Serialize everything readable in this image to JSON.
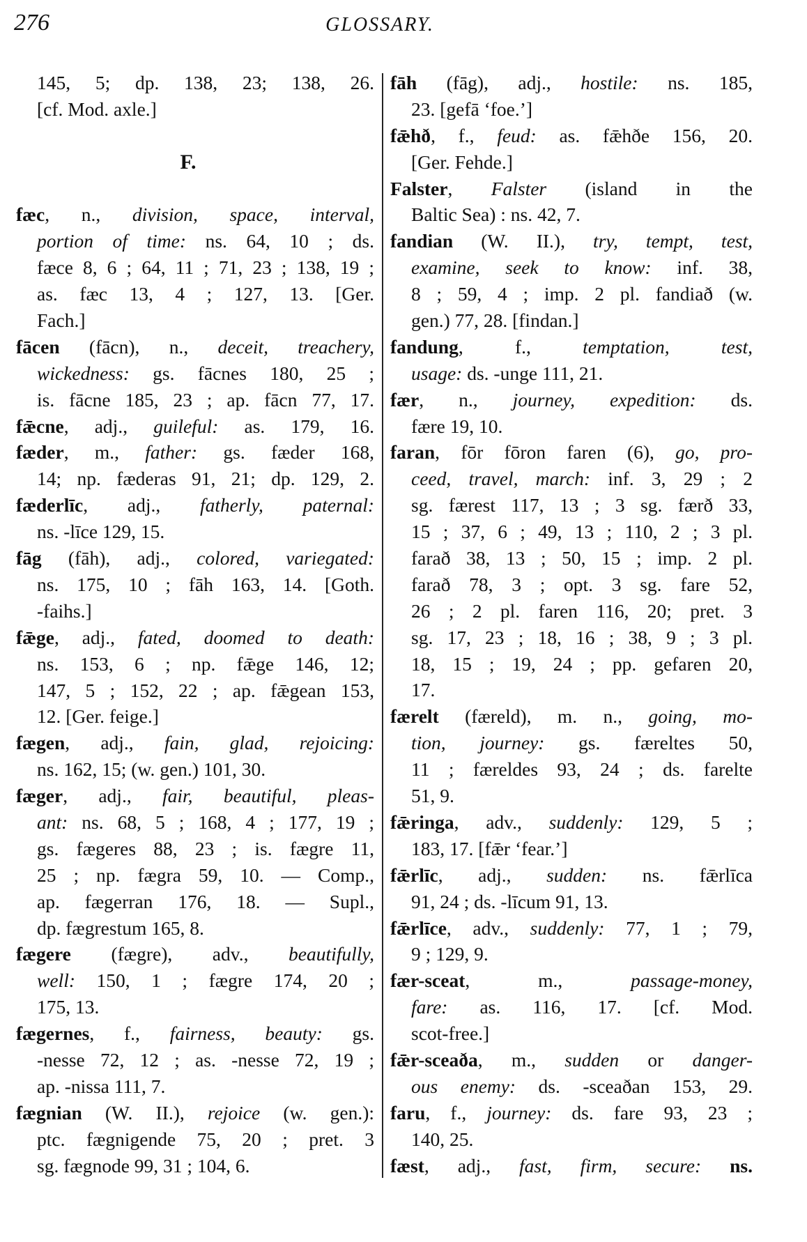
{
  "header": {
    "page_number": "276",
    "running_title": "GLOSSARY."
  },
  "left": {
    "before": [
      {
        "ind": true,
        "segs": [
          [
            "r",
            "145, 5; dp. 138, 23; 138, 26."
          ]
        ]
      },
      {
        "ind": true,
        "last": true,
        "segs": [
          [
            "r",
            "[cf. Mod. axle.]"
          ]
        ]
      }
    ],
    "section_heading": "F.",
    "lines": [
      {
        "segs": [
          [
            "b",
            "fæc"
          ],
          [
            "r",
            ", n., "
          ],
          [
            "i",
            "division, space, interval,"
          ]
        ]
      },
      {
        "ind": true,
        "segs": [
          [
            "i",
            "portion of time:"
          ],
          [
            "r",
            " ns. 64, 10 ; ds."
          ]
        ]
      },
      {
        "ind": true,
        "segs": [
          [
            "r",
            "fæce 8, 6 ; 64, 11 ; 71, 23 ; 138, 19 ;"
          ]
        ]
      },
      {
        "ind": true,
        "segs": [
          [
            "r",
            "as. fæc 13, 4 ; 127, 13. [Ger."
          ]
        ]
      },
      {
        "ind": true,
        "last": true,
        "segs": [
          [
            "r",
            "Fach.]"
          ]
        ]
      },
      {
        "segs": [
          [
            "b",
            "fācen"
          ],
          [
            "r",
            " (fācn), n., "
          ],
          [
            "i",
            "deceit, treachery,"
          ]
        ]
      },
      {
        "ind": true,
        "segs": [
          [
            "i",
            "wickedness:"
          ],
          [
            "r",
            " gs. fācnes 180, 25 ;"
          ]
        ]
      },
      {
        "ind": true,
        "segs": [
          [
            "r",
            "is. fācne 185, 23 ; ap. fācn 77, 17."
          ]
        ]
      },
      {
        "segs": [
          [
            "b",
            "fǣcne"
          ],
          [
            "r",
            ", adj., "
          ],
          [
            "i",
            "guileful:"
          ],
          [
            "r",
            " as. 179, 16."
          ]
        ]
      },
      {
        "segs": [
          [
            "b",
            "fæder"
          ],
          [
            "r",
            ", m., "
          ],
          [
            "i",
            "father:"
          ],
          [
            "r",
            " gs. fæder 168,"
          ]
        ]
      },
      {
        "ind": true,
        "segs": [
          [
            "r",
            "14; np. fæderas 91, 21; dp. 129, 2."
          ]
        ]
      },
      {
        "segs": [
          [
            "b",
            "fæderlīc"
          ],
          [
            "r",
            ", adj., "
          ],
          [
            "i",
            "fatherly, paternal:"
          ]
        ]
      },
      {
        "ind": true,
        "last": true,
        "segs": [
          [
            "r",
            "ns. -līce 129, 15."
          ]
        ]
      },
      {
        "segs": [
          [
            "b",
            "fāg"
          ],
          [
            "r",
            " (fāh), adj., "
          ],
          [
            "i",
            "colored, variegated:"
          ]
        ]
      },
      {
        "ind": true,
        "segs": [
          [
            "r",
            "ns. 175, 10 ; fāh 163, 14. [Goth."
          ]
        ]
      },
      {
        "ind": true,
        "last": true,
        "segs": [
          [
            "r",
            "-faihs.]"
          ]
        ]
      },
      {
        "segs": [
          [
            "b",
            "fǣge"
          ],
          [
            "r",
            ", adj., "
          ],
          [
            "i",
            "fated, doomed to death:"
          ]
        ]
      },
      {
        "ind": true,
        "segs": [
          [
            "r",
            "ns. 153, 6 ; np. fǣge 146, 12;"
          ]
        ]
      },
      {
        "ind": true,
        "segs": [
          [
            "r",
            "147, 5 ; 152, 22 ; ap. fǣgean 153,"
          ]
        ]
      },
      {
        "ind": true,
        "last": true,
        "segs": [
          [
            "r",
            "12. [Ger. feige.]"
          ]
        ]
      },
      {
        "segs": [
          [
            "b",
            "fægen"
          ],
          [
            "r",
            ", adj., "
          ],
          [
            "i",
            "fain, glad, rejoicing:"
          ]
        ]
      },
      {
        "ind": true,
        "last": true,
        "segs": [
          [
            "r",
            "ns. 162, 15; (w. gen.) 101, 30."
          ]
        ]
      },
      {
        "segs": [
          [
            "b",
            "fæger"
          ],
          [
            "r",
            ", adj., "
          ],
          [
            "i",
            "fair, beautiful, pleas-"
          ]
        ]
      },
      {
        "ind": true,
        "segs": [
          [
            "i",
            "ant:"
          ],
          [
            "r",
            " ns. 68, 5 ; 168, 4 ; 177, 19 ;"
          ]
        ]
      },
      {
        "ind": true,
        "segs": [
          [
            "r",
            "gs. fægeres 88, 23 ; is. fægre 11,"
          ]
        ]
      },
      {
        "ind": true,
        "segs": [
          [
            "r",
            "25 ; np. fægra 59, 10. — Comp.,"
          ]
        ]
      },
      {
        "ind": true,
        "segs": [
          [
            "r",
            "ap. fægerran 176, 18. — Supl.,"
          ]
        ]
      },
      {
        "ind": true,
        "last": true,
        "segs": [
          [
            "r",
            "dp. fægrestum 165, 8."
          ]
        ]
      },
      {
        "segs": [
          [
            "b",
            "fægere"
          ],
          [
            "r",
            " (fægre), adv., "
          ],
          [
            "i",
            "beautifully,"
          ]
        ]
      },
      {
        "ind": true,
        "segs": [
          [
            "i",
            "well:"
          ],
          [
            "r",
            " 150, 1 ; fægre 174, 20 ;"
          ]
        ]
      },
      {
        "ind": true,
        "last": true,
        "segs": [
          [
            "r",
            "175, 13."
          ]
        ]
      },
      {
        "segs": [
          [
            "b",
            "fægernes"
          ],
          [
            "r",
            ", f., "
          ],
          [
            "i",
            "fairness, beauty:"
          ],
          [
            "r",
            " gs."
          ]
        ]
      },
      {
        "ind": true,
        "segs": [
          [
            "r",
            "-nesse 72, 12 ; as. -nesse 72, 19 ;"
          ]
        ]
      },
      {
        "ind": true,
        "last": true,
        "segs": [
          [
            "r",
            "ap. -nissa 111, 7."
          ]
        ]
      },
      {
        "segs": [
          [
            "b",
            "fægnian"
          ],
          [
            "r",
            " (W. II.), "
          ],
          [
            "i",
            "rejoice"
          ],
          [
            "r",
            " (w. gen.):"
          ]
        ]
      },
      {
        "ind": true,
        "segs": [
          [
            "r",
            "ptc. fægnigende 75, 20 ; pret. 3"
          ]
        ]
      },
      {
        "ind": true,
        "last": true,
        "segs": [
          [
            "r",
            "sg. fægnode 99, 31 ; 104, 6."
          ]
        ]
      }
    ]
  },
  "right": {
    "lines": [
      {
        "segs": [
          [
            "b",
            "fāh"
          ],
          [
            "r",
            " (fāg), adj., "
          ],
          [
            "i",
            "hostile:"
          ],
          [
            "r",
            " ns. 185,"
          ]
        ]
      },
      {
        "ind": true,
        "last": true,
        "segs": [
          [
            "r",
            "23. [gefā ‘foe.’]"
          ]
        ]
      },
      {
        "segs": [
          [
            "b",
            "fǣhð"
          ],
          [
            "r",
            ", f., "
          ],
          [
            "i",
            "feud:"
          ],
          [
            "r",
            " as. fǣhðe 156, 20."
          ]
        ]
      },
      {
        "ind": true,
        "last": true,
        "segs": [
          [
            "r",
            "[Ger. Fehde.]"
          ]
        ]
      },
      {
        "segs": [
          [
            "b",
            "Falster"
          ],
          [
            "r",
            ", "
          ],
          [
            "i",
            "Falster"
          ],
          [
            "r",
            " (island in the"
          ]
        ]
      },
      {
        "ind": true,
        "last": true,
        "segs": [
          [
            "r",
            "Baltic Sea) : ns. 42, 7."
          ]
        ]
      },
      {
        "segs": [
          [
            "b",
            "fandian"
          ],
          [
            "r",
            " (W. II.), "
          ],
          [
            "i",
            "try, tempt, test,"
          ]
        ]
      },
      {
        "ind": true,
        "segs": [
          [
            "i",
            "examine, seek to know:"
          ],
          [
            "r",
            " inf. 38,"
          ]
        ]
      },
      {
        "ind": true,
        "segs": [
          [
            "r",
            "8 ; 59, 4 ; imp. 2 pl. fandiað (w."
          ]
        ]
      },
      {
        "ind": true,
        "last": true,
        "segs": [
          [
            "r",
            "gen.) 77, 28. [findan.]"
          ]
        ]
      },
      {
        "segs": [
          [
            "b",
            "fandung"
          ],
          [
            "r",
            ", f., "
          ],
          [
            "i",
            "temptation, test,"
          ]
        ]
      },
      {
        "ind": true,
        "last": true,
        "segs": [
          [
            "i",
            "usage:"
          ],
          [
            "r",
            " ds. -unge 111, 21."
          ]
        ]
      },
      {
        "segs": [
          [
            "b",
            "fær"
          ],
          [
            "r",
            ", n., "
          ],
          [
            "i",
            "journey, expedition:"
          ],
          [
            "r",
            " ds."
          ]
        ]
      },
      {
        "ind": true,
        "last": true,
        "segs": [
          [
            "r",
            "fære 19, 10."
          ]
        ]
      },
      {
        "segs": [
          [
            "b",
            "faran"
          ],
          [
            "r",
            ", fōr fōron faren (6), "
          ],
          [
            "i",
            "go, pro-"
          ]
        ]
      },
      {
        "ind": true,
        "segs": [
          [
            "i",
            "ceed, travel, march:"
          ],
          [
            "r",
            " inf. 3, 29 ; 2"
          ]
        ]
      },
      {
        "ind": true,
        "segs": [
          [
            "r",
            "sg. færest 117, 13 ; 3 sg. færð 33,"
          ]
        ]
      },
      {
        "ind": true,
        "segs": [
          [
            "r",
            "15 ; 37, 6 ; 49, 13 ; 110, 2 ; 3 pl."
          ]
        ]
      },
      {
        "ind": true,
        "segs": [
          [
            "r",
            "farað 38, 13 ; 50, 15 ; imp. 2 pl."
          ]
        ]
      },
      {
        "ind": true,
        "segs": [
          [
            "r",
            "farað 78, 3 ; opt. 3 sg. fare 52,"
          ]
        ]
      },
      {
        "ind": true,
        "segs": [
          [
            "r",
            "26 ; 2 pl. faren 116, 20; pret. 3"
          ]
        ]
      },
      {
        "ind": true,
        "segs": [
          [
            "r",
            "sg. 17, 23 ; 18, 16 ; 38, 9 ; 3 pl."
          ]
        ]
      },
      {
        "ind": true,
        "segs": [
          [
            "r",
            "18, 15 ; 19, 24 ; pp. gefaren 20,"
          ]
        ]
      },
      {
        "ind": true,
        "last": true,
        "segs": [
          [
            "r",
            "17."
          ]
        ]
      },
      {
        "segs": [
          [
            "b",
            "færelt"
          ],
          [
            "r",
            " (færeld), m. n., "
          ],
          [
            "i",
            "going, mo-"
          ]
        ]
      },
      {
        "ind": true,
        "segs": [
          [
            "i",
            "tion, journey:"
          ],
          [
            "r",
            " gs. færeltes 50,"
          ]
        ]
      },
      {
        "ind": true,
        "segs": [
          [
            "r",
            "11 ; færeldes 93, 24 ; ds. farelte"
          ]
        ]
      },
      {
        "ind": true,
        "last": true,
        "segs": [
          [
            "r",
            "51, 9."
          ]
        ]
      },
      {
        "segs": [
          [
            "b",
            "fǣringa"
          ],
          [
            "r",
            ", adv., "
          ],
          [
            "i",
            "suddenly:"
          ],
          [
            "r",
            " 129, 5 ;"
          ]
        ]
      },
      {
        "ind": true,
        "last": true,
        "segs": [
          [
            "r",
            "183, 17. [fǣr ‘fear.’]"
          ]
        ]
      },
      {
        "segs": [
          [
            "b",
            "fǣrlīc"
          ],
          [
            "r",
            ", adj., "
          ],
          [
            "i",
            "sudden:"
          ],
          [
            "r",
            " ns. fǣrlīca"
          ]
        ]
      },
      {
        "ind": true,
        "last": true,
        "segs": [
          [
            "r",
            "91, 24 ; ds. -līcum 91, 13."
          ]
        ]
      },
      {
        "segs": [
          [
            "b",
            "fǣrlīce"
          ],
          [
            "r",
            ", adv., "
          ],
          [
            "i",
            "suddenly:"
          ],
          [
            "r",
            " 77, 1 ; 79,"
          ]
        ]
      },
      {
        "ind": true,
        "last": true,
        "segs": [
          [
            "r",
            "9 ; 129, 9."
          ]
        ]
      },
      {
        "segs": [
          [
            "b",
            "fær-sceat"
          ],
          [
            "r",
            ", m., "
          ],
          [
            "i",
            "passage-money,"
          ]
        ]
      },
      {
        "ind": true,
        "segs": [
          [
            "i",
            "fare:"
          ],
          [
            "r",
            " as. 116, 17. [cf. Mod."
          ]
        ]
      },
      {
        "ind": true,
        "last": true,
        "segs": [
          [
            "r",
            "scot-free.]"
          ]
        ]
      },
      {
        "segs": [
          [
            "b",
            "fǣr-sceaða"
          ],
          [
            "r",
            ", m., "
          ],
          [
            "i",
            "sudden"
          ],
          [
            "r",
            " or "
          ],
          [
            "i",
            "danger-"
          ]
        ]
      },
      {
        "ind": true,
        "segs": [
          [
            "i",
            "ous enemy:"
          ],
          [
            "r",
            " ds. -sceaðan 153, 29."
          ]
        ]
      },
      {
        "segs": [
          [
            "b",
            "faru"
          ],
          [
            "r",
            ", f., "
          ],
          [
            "i",
            "journey:"
          ],
          [
            "r",
            " ds. fare 93, 23 ;"
          ]
        ]
      },
      {
        "ind": true,
        "last": true,
        "segs": [
          [
            "r",
            "140, 25."
          ]
        ]
      },
      {
        "segs": [
          [
            "b",
            "fæst"
          ],
          [
            "r",
            ", adj., "
          ],
          [
            "i",
            "fast, firm, secure:"
          ],
          [
            "r",
            " "
          ],
          [
            "b",
            "ns."
          ]
        ]
      }
    ]
  }
}
